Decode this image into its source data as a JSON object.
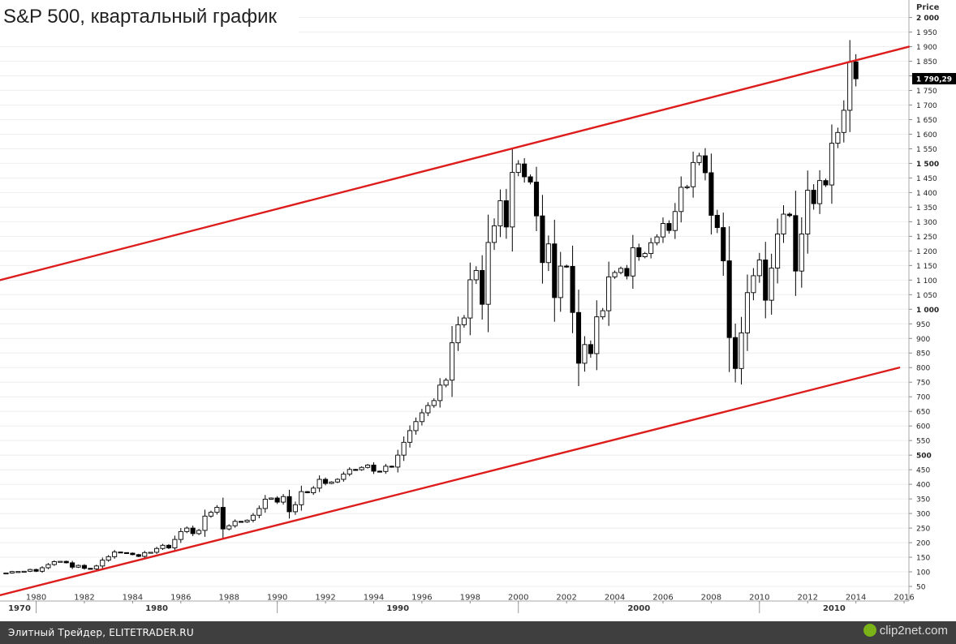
{
  "chart_data": {
    "type": "candlestick",
    "title": "S&P 500, квартальный график",
    "price_axis_title": "Price",
    "y_ticks": [
      2000,
      1950,
      1900,
      1850,
      1800,
      1750,
      1700,
      1650,
      1600,
      1550,
      1500,
      1450,
      1400,
      1350,
      1300,
      1250,
      1200,
      1150,
      1100,
      1050,
      1000,
      950,
      900,
      850,
      800,
      750,
      700,
      650,
      600,
      550,
      500,
      450,
      400,
      350,
      300,
      250,
      200,
      150,
      100,
      50
    ],
    "y_tick_labels": [
      "2 000",
      "1 950",
      "1 900",
      "1 850",
      "1 800",
      "1 750",
      "1 700",
      "1 650",
      "1 600",
      "1 550",
      "1 500",
      "1 450",
      "1 400",
      "1 350",
      "1 300",
      "1 250",
      "1 200",
      "1 150",
      "1 100",
      "1 050",
      "1 000",
      "950",
      "900",
      "850",
      "800",
      "750",
      "700",
      "650",
      "600",
      "550",
      "500",
      "450",
      "400",
      "350",
      "300",
      "250",
      "200",
      "150",
      "100",
      "50"
    ],
    "bold_ticks": [
      2000,
      1500,
      1000,
      500
    ],
    "x_ticks": [
      1980,
      1982,
      1984,
      1986,
      1988,
      1990,
      1992,
      1994,
      1996,
      1998,
      2000,
      2002,
      2004,
      2006,
      2008,
      2010,
      2012,
      2014,
      2016
    ],
    "x_tick_labels": [
      "1980",
      "1982",
      "1984",
      "1986",
      "1988",
      "1990",
      "1992",
      "1994",
      "1996",
      "1998",
      "2000",
      "2002",
      "2004",
      "2006",
      "2008",
      "2010",
      "2012",
      "2014",
      "2016"
    ],
    "decade_labels": [
      {
        "year": 1970,
        "label": "1970"
      },
      {
        "year": 1980,
        "label": "1980"
      },
      {
        "year": 1990,
        "label": "1990"
      },
      {
        "year": 2000,
        "label": "2000"
      },
      {
        "year": 2010,
        "label": "2010"
      }
    ],
    "last_price": 1790.29,
    "last_price_label": "1 790,29",
    "xlim": [
      1978.5,
      2016.2
    ],
    "ylim": [
      0,
      2060
    ],
    "channel_lines": [
      {
        "points": [
          [
            1978.5,
            1100
          ],
          [
            2016.2,
            1900
          ]
        ],
        "color": "#dd1c1c"
      },
      {
        "points": [
          [
            1978.5,
            20
          ],
          [
            2015.8,
            800
          ]
        ],
        "color": "#dd1c1c"
      }
    ],
    "quarterly_close": [
      [
        1978.75,
        96
      ],
      [
        1979.0,
        101
      ],
      [
        1979.25,
        101
      ],
      [
        1979.5,
        102
      ],
      [
        1979.75,
        108
      ],
      [
        1980.0,
        102
      ],
      [
        1980.25,
        114
      ],
      [
        1980.5,
        125
      ],
      [
        1980.75,
        135
      ],
      [
        1981.0,
        136
      ],
      [
        1981.25,
        131
      ],
      [
        1981.5,
        116
      ],
      [
        1981.75,
        122
      ],
      [
        1982.0,
        112
      ],
      [
        1982.25,
        110
      ],
      [
        1982.5,
        120
      ],
      [
        1982.75,
        140
      ],
      [
        1983.0,
        152
      ],
      [
        1983.25,
        168
      ],
      [
        1983.5,
        166
      ],
      [
        1983.75,
        164
      ],
      [
        1984.0,
        159
      ],
      [
        1984.25,
        153
      ],
      [
        1984.5,
        166
      ],
      [
        1984.75,
        167
      ],
      [
        1985.0,
        180
      ],
      [
        1985.25,
        191
      ],
      [
        1985.5,
        182
      ],
      [
        1985.75,
        211
      ],
      [
        1986.0,
        238
      ],
      [
        1986.25,
        250
      ],
      [
        1986.5,
        231
      ],
      [
        1986.75,
        242
      ],
      [
        1987.0,
        291
      ],
      [
        1987.25,
        304
      ],
      [
        1987.5,
        321
      ],
      [
        1987.75,
        247
      ],
      [
        1988.0,
        258
      ],
      [
        1988.25,
        273
      ],
      [
        1988.5,
        271
      ],
      [
        1988.75,
        277
      ],
      [
        1989.0,
        294
      ],
      [
        1989.25,
        317
      ],
      [
        1989.5,
        349
      ],
      [
        1989.75,
        353
      ],
      [
        1990.0,
        339
      ],
      [
        1990.25,
        358
      ],
      [
        1990.5,
        306
      ],
      [
        1990.75,
        330
      ],
      [
        1991.0,
        375
      ],
      [
        1991.25,
        371
      ],
      [
        1991.5,
        387
      ],
      [
        1991.75,
        417
      ],
      [
        1992.0,
        403
      ],
      [
        1992.25,
        408
      ],
      [
        1992.5,
        417
      ],
      [
        1992.75,
        435
      ],
      [
        1993.0,
        451
      ],
      [
        1993.25,
        450
      ],
      [
        1993.5,
        458
      ],
      [
        1993.75,
        466
      ],
      [
        1994.0,
        445
      ],
      [
        1994.25,
        444
      ],
      [
        1994.5,
        462
      ],
      [
        1994.75,
        459
      ],
      [
        1995.0,
        500
      ],
      [
        1995.25,
        544
      ],
      [
        1995.5,
        584
      ],
      [
        1995.75,
        615
      ],
      [
        1996.0,
        645
      ],
      [
        1996.25,
        670
      ],
      [
        1996.5,
        687
      ],
      [
        1996.75,
        740
      ],
      [
        1997.0,
        757
      ],
      [
        1997.25,
        885
      ],
      [
        1997.5,
        947
      ],
      [
        1997.75,
        970
      ],
      [
        1998.0,
        1101
      ],
      [
        1998.25,
        1133
      ],
      [
        1998.5,
        1017
      ],
      [
        1998.75,
        1229
      ],
      [
        1999.0,
        1286
      ],
      [
        1999.25,
        1372
      ],
      [
        1999.5,
        1282
      ],
      [
        1999.75,
        1469
      ],
      [
        2000.0,
        1498
      ],
      [
        2000.25,
        1454
      ],
      [
        2000.5,
        1436
      ],
      [
        2000.75,
        1320
      ],
      [
        2001.0,
        1160
      ],
      [
        2001.25,
        1224
      ],
      [
        2001.5,
        1040
      ],
      [
        2001.75,
        1148
      ],
      [
        2002.0,
        1147
      ],
      [
        2002.25,
        989
      ],
      [
        2002.5,
        815
      ],
      [
        2002.75,
        879
      ],
      [
        2003.0,
        848
      ],
      [
        2003.25,
        974
      ],
      [
        2003.5,
        995
      ],
      [
        2003.75,
        1111
      ],
      [
        2004.0,
        1126
      ],
      [
        2004.25,
        1140
      ],
      [
        2004.5,
        1114
      ],
      [
        2004.75,
        1211
      ],
      [
        2005.0,
        1180
      ],
      [
        2005.25,
        1191
      ],
      [
        2005.5,
        1228
      ],
      [
        2005.75,
        1248
      ],
      [
        2006.0,
        1294
      ],
      [
        2006.25,
        1270
      ],
      [
        2006.5,
        1335
      ],
      [
        2006.75,
        1418
      ],
      [
        2007.0,
        1420
      ],
      [
        2007.25,
        1503
      ],
      [
        2007.5,
        1526
      ],
      [
        2007.75,
        1468
      ],
      [
        2008.0,
        1322
      ],
      [
        2008.25,
        1280
      ],
      [
        2008.5,
        1166
      ],
      [
        2008.75,
        903
      ],
      [
        2009.0,
        797
      ],
      [
        2009.25,
        919
      ],
      [
        2009.5,
        1057
      ],
      [
        2009.75,
        1115
      ],
      [
        2010.0,
        1169
      ],
      [
        2010.25,
        1031
      ],
      [
        2010.5,
        1141
      ],
      [
        2010.75,
        1258
      ],
      [
        2011.0,
        1326
      ],
      [
        2011.25,
        1321
      ],
      [
        2011.5,
        1131
      ],
      [
        2011.75,
        1258
      ],
      [
        2012.0,
        1408
      ],
      [
        2012.25,
        1362
      ],
      [
        2012.5,
        1441
      ],
      [
        2012.75,
        1426
      ],
      [
        2013.0,
        1569
      ],
      [
        2013.25,
        1606
      ],
      [
        2013.5,
        1682
      ],
      [
        2013.75,
        1848
      ],
      [
        2014.0,
        1790
      ]
    ]
  },
  "footer": {
    "source_text": "Элитный Трейдер, ELITETRADER.RU",
    "logo_text": "clip2net.com"
  }
}
